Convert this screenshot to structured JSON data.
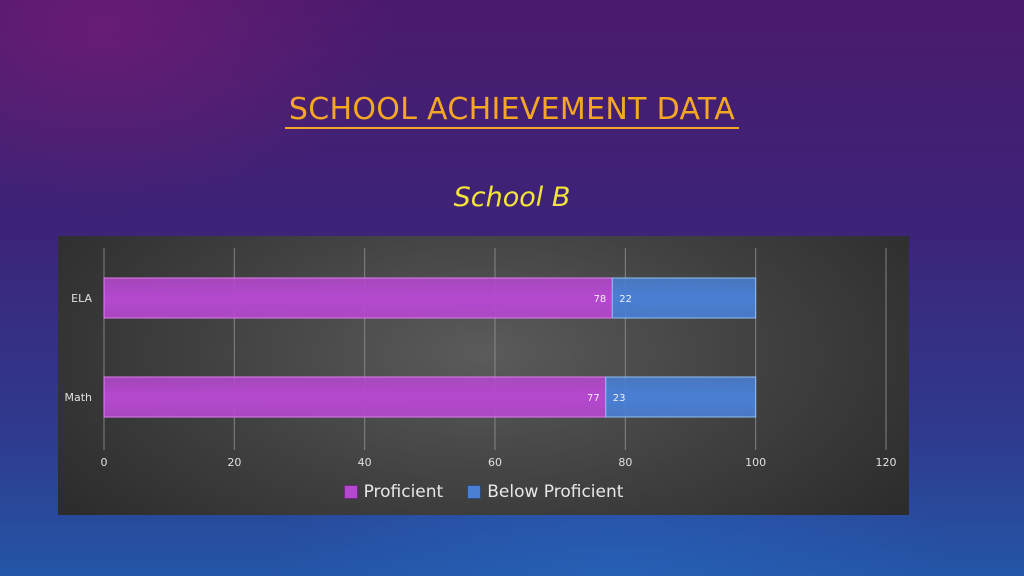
{
  "slide": {
    "title": "SCHOOL ACHIEVEMENT DATA",
    "subtitle": "School B"
  },
  "colors": {
    "title": "#f5a623",
    "subtitle": "#f4e53a",
    "proficient": "#b548cf",
    "below_proficient": "#4a7fd4"
  },
  "chart_data": {
    "type": "bar",
    "orientation": "horizontal",
    "stacked": true,
    "categories": [
      "ELA",
      "Math"
    ],
    "series": [
      {
        "name": "Proficient",
        "values": [
          78,
          77
        ]
      },
      {
        "name": "Below Proficient",
        "values": [
          22,
          23
        ]
      }
    ],
    "xlim": [
      0,
      120
    ],
    "x_ticks": [
      0,
      20,
      40,
      60,
      80,
      100,
      120
    ],
    "grid": true,
    "legend_position": "bottom"
  }
}
